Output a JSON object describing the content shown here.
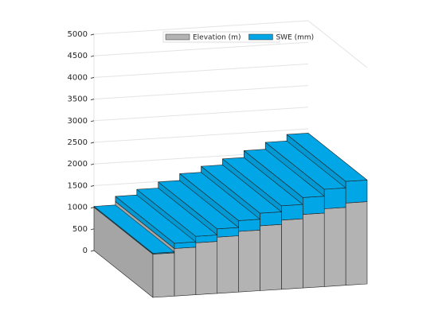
{
  "chart_data": {
    "type": "bar3",
    "stacked": true,
    "grid": true,
    "legend_position": "north",
    "series": [
      {
        "name": "Elevation (m)",
        "color": "#b3b3b3",
        "values": [
          1000,
          1100,
          1200,
          1300,
          1400,
          1500,
          1600,
          1700,
          1800,
          1900
        ]
      },
      {
        "name": "SWE (mm)",
        "color": "#00a6e6",
        "values": [
          20,
          120,
          150,
          190,
          250,
          290,
          330,
          390,
          450,
          500
        ]
      }
    ],
    "ylim": [
      0,
      5000
    ],
    "yticks": [
      0,
      500,
      1000,
      1500,
      2000,
      2500,
      3000,
      3500,
      4000,
      4500,
      5000
    ]
  }
}
